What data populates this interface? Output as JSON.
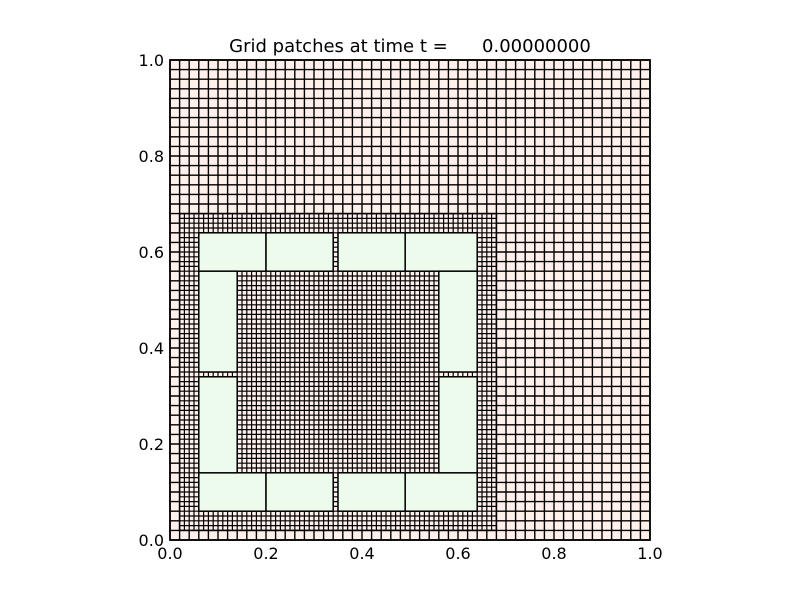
{
  "chart_data": {
    "type": "heatmap",
    "title": "Grid patches at time t =      0.00000000",
    "xlabel": "",
    "ylabel": "",
    "xlim": [
      0.0,
      1.0
    ],
    "ylim": [
      0.0,
      1.0
    ],
    "x_ticks": [
      "0.0",
      "0.2",
      "0.4",
      "0.6",
      "0.8",
      "1.0"
    ],
    "y_ticks": [
      "0.0",
      "0.2",
      "0.4",
      "0.6",
      "0.8",
      "1.0"
    ],
    "grid": false,
    "patches": [
      {
        "name": "level1",
        "level": 1,
        "color": "#fff0eb",
        "x0": 0.0,
        "x1": 1.0,
        "y0": 0.0,
        "y1": 1.0,
        "cells_x": 50,
        "cells_y": 50
      },
      {
        "name": "level2",
        "level": 2,
        "color": "#fff0eb",
        "x0": 0.02,
        "x1": 0.68,
        "y0": 0.02,
        "y1": 0.68,
        "cells_x": 66,
        "cells_y": 66
      },
      {
        "name": "level3-bottom-1",
        "level": 3,
        "color": "#ecfbec",
        "x0": 0.06,
        "x1": 0.2,
        "y0": 0.06,
        "y1": 0.14,
        "cells_x": 0,
        "cells_y": 0
      },
      {
        "name": "level3-bottom-2",
        "level": 3,
        "color": "#ecfbec",
        "x0": 0.2,
        "x1": 0.34,
        "y0": 0.06,
        "y1": 0.14,
        "cells_x": 0,
        "cells_y": 0
      },
      {
        "name": "level3-bottom-3",
        "level": 3,
        "color": "#ecfbec",
        "x0": 0.35,
        "x1": 0.49,
        "y0": 0.06,
        "y1": 0.14,
        "cells_x": 0,
        "cells_y": 0
      },
      {
        "name": "level3-bottom-4",
        "level": 3,
        "color": "#ecfbec",
        "x0": 0.49,
        "x1": 0.64,
        "y0": 0.06,
        "y1": 0.14,
        "cells_x": 0,
        "cells_y": 0
      },
      {
        "name": "level3-top-1",
        "level": 3,
        "color": "#ecfbec",
        "x0": 0.06,
        "x1": 0.2,
        "y0": 0.56,
        "y1": 0.64,
        "cells_x": 0,
        "cells_y": 0
      },
      {
        "name": "level3-top-2",
        "level": 3,
        "color": "#ecfbec",
        "x0": 0.2,
        "x1": 0.34,
        "y0": 0.56,
        "y1": 0.64,
        "cells_x": 0,
        "cells_y": 0
      },
      {
        "name": "level3-top-3",
        "level": 3,
        "color": "#ecfbec",
        "x0": 0.35,
        "x1": 0.49,
        "y0": 0.56,
        "y1": 0.64,
        "cells_x": 0,
        "cells_y": 0
      },
      {
        "name": "level3-top-4",
        "level": 3,
        "color": "#ecfbec",
        "x0": 0.49,
        "x1": 0.64,
        "y0": 0.56,
        "y1": 0.64,
        "cells_x": 0,
        "cells_y": 0
      },
      {
        "name": "level3-left-lower",
        "level": 3,
        "color": "#ecfbec",
        "x0": 0.06,
        "x1": 0.14,
        "y0": 0.14,
        "y1": 0.34,
        "cells_x": 0,
        "cells_y": 0
      },
      {
        "name": "level3-left-upper",
        "level": 3,
        "color": "#ecfbec",
        "x0": 0.06,
        "x1": 0.14,
        "y0": 0.35,
        "y1": 0.56,
        "cells_x": 0,
        "cells_y": 0
      },
      {
        "name": "level3-right-lower",
        "level": 3,
        "color": "#ecfbec",
        "x0": 0.56,
        "x1": 0.64,
        "y0": 0.14,
        "y1": 0.34,
        "cells_x": 0,
        "cells_y": 0
      },
      {
        "name": "level3-right-upper",
        "level": 3,
        "color": "#ecfbec",
        "x0": 0.56,
        "x1": 0.64,
        "y0": 0.35,
        "y1": 0.56,
        "cells_x": 0,
        "cells_y": 0
      }
    ]
  }
}
